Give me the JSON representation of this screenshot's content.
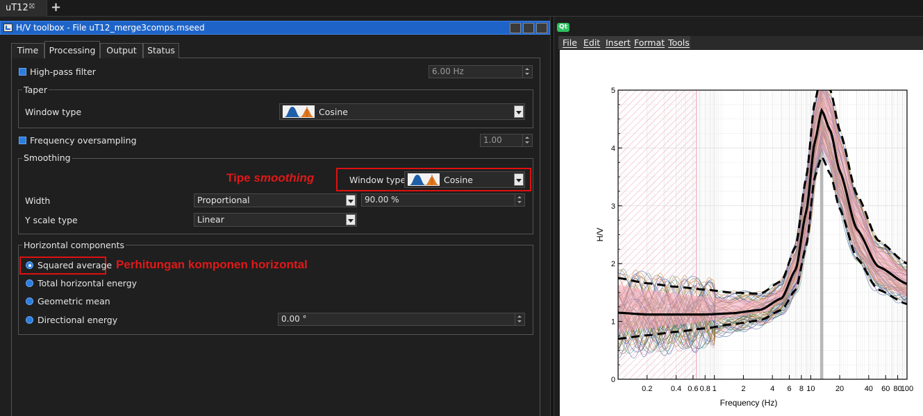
{
  "top_tab": {
    "label": "uT12",
    "close_glyph": "⛝",
    "add_glyph": "+"
  },
  "left_window": {
    "title": "H/V toolbox - File uT12_merge3comps.mseed",
    "tabs": [
      "Time",
      "Processing",
      "Output",
      "Status"
    ],
    "active_tab": "Processing",
    "highpass": {
      "label": "High-pass filter",
      "value": "6.00 Hz"
    },
    "taper": {
      "group": "Taper",
      "window_label": "Window type",
      "window_value": "Cosine"
    },
    "oversampling": {
      "label": "Frequency oversampling",
      "value": "1.00"
    },
    "smoothing": {
      "group": "Smoothing",
      "window_label": "Window type",
      "window_value": "Cosine",
      "width_label": "Width",
      "width_value": "Proportional",
      "width_amount": "90.00 %",
      "yscale_label": "Y scale type",
      "yscale_value": "Linear"
    },
    "horizontal": {
      "group": "Horizontal components",
      "options": [
        "Squared average",
        "Total horizontal energy",
        "Geometric mean",
        "Directional energy"
      ],
      "selected": "Squared average",
      "direction_value": "0.00 °"
    },
    "annotations": {
      "smoothing_prefix": "Tipe ",
      "smoothing_emph": "smoothing",
      "horizontal": "Perhitungan komponen horizontal"
    },
    "colors": {
      "accent": "#1e64c8",
      "annotation": "#e01010"
    }
  },
  "right_window": {
    "badge": "Qt",
    "menu": [
      "File",
      "Edit",
      "Insert",
      "Format",
      "Tools"
    ],
    "chart_data": {
      "type": "line",
      "xlabel": "Frequency (Hz)",
      "ylabel": "H/V",
      "xscale": "log",
      "xlim": [
        0.1,
        100
      ],
      "ylim": [
        0,
        5
      ],
      "x_ticks": [
        "0.2",
        "0.4",
        "0.6",
        "0.8",
        "1",
        "2",
        "4",
        "6",
        "8",
        "10",
        "20",
        "40",
        "60",
        "80",
        "100"
      ],
      "y_ticks": [
        "0",
        "1",
        "2",
        "3",
        "4",
        "5"
      ],
      "peak_frequency_band": [
        12.5,
        13.5
      ],
      "excluded_band": [
        0.1,
        0.65
      ],
      "mean_curve": {
        "x": [
          0.1,
          0.2,
          0.4,
          0.8,
          1.5,
          3,
          5,
          7,
          9,
          11,
          13,
          16,
          20,
          30,
          50,
          100
        ],
        "y": [
          1.15,
          1.12,
          1.12,
          1.12,
          1.14,
          1.2,
          1.4,
          1.9,
          2.9,
          4.1,
          4.65,
          4.3,
          3.6,
          2.6,
          1.95,
          1.65
        ]
      },
      "upper_std": {
        "x": [
          0.1,
          0.2,
          0.4,
          0.8,
          1.5,
          3,
          5,
          7,
          9,
          11,
          13,
          16,
          20,
          30,
          50,
          100
        ],
        "y": [
          1.75,
          1.66,
          1.6,
          1.55,
          1.5,
          1.48,
          1.7,
          2.3,
          3.5,
          4.8,
          5.3,
          5.0,
          4.3,
          3.2,
          2.4,
          2.0
        ]
      },
      "lower_std": {
        "x": [
          0.1,
          0.2,
          0.4,
          0.8,
          1.5,
          3,
          5,
          7,
          9,
          11,
          13,
          16,
          20,
          30,
          50,
          100
        ],
        "y": [
          0.7,
          0.76,
          0.82,
          0.88,
          0.95,
          1.02,
          1.2,
          1.55,
          2.3,
          3.5,
          3.85,
          3.55,
          2.95,
          2.1,
          1.55,
          1.3
        ]
      },
      "colors": {
        "mean": "#000000",
        "band": "#f4a6b8",
        "windows": [
          "#2a4a9a",
          "#7a7a20",
          "#c07a30",
          "#3a8a6a",
          "#e08aa0"
        ]
      }
    }
  }
}
